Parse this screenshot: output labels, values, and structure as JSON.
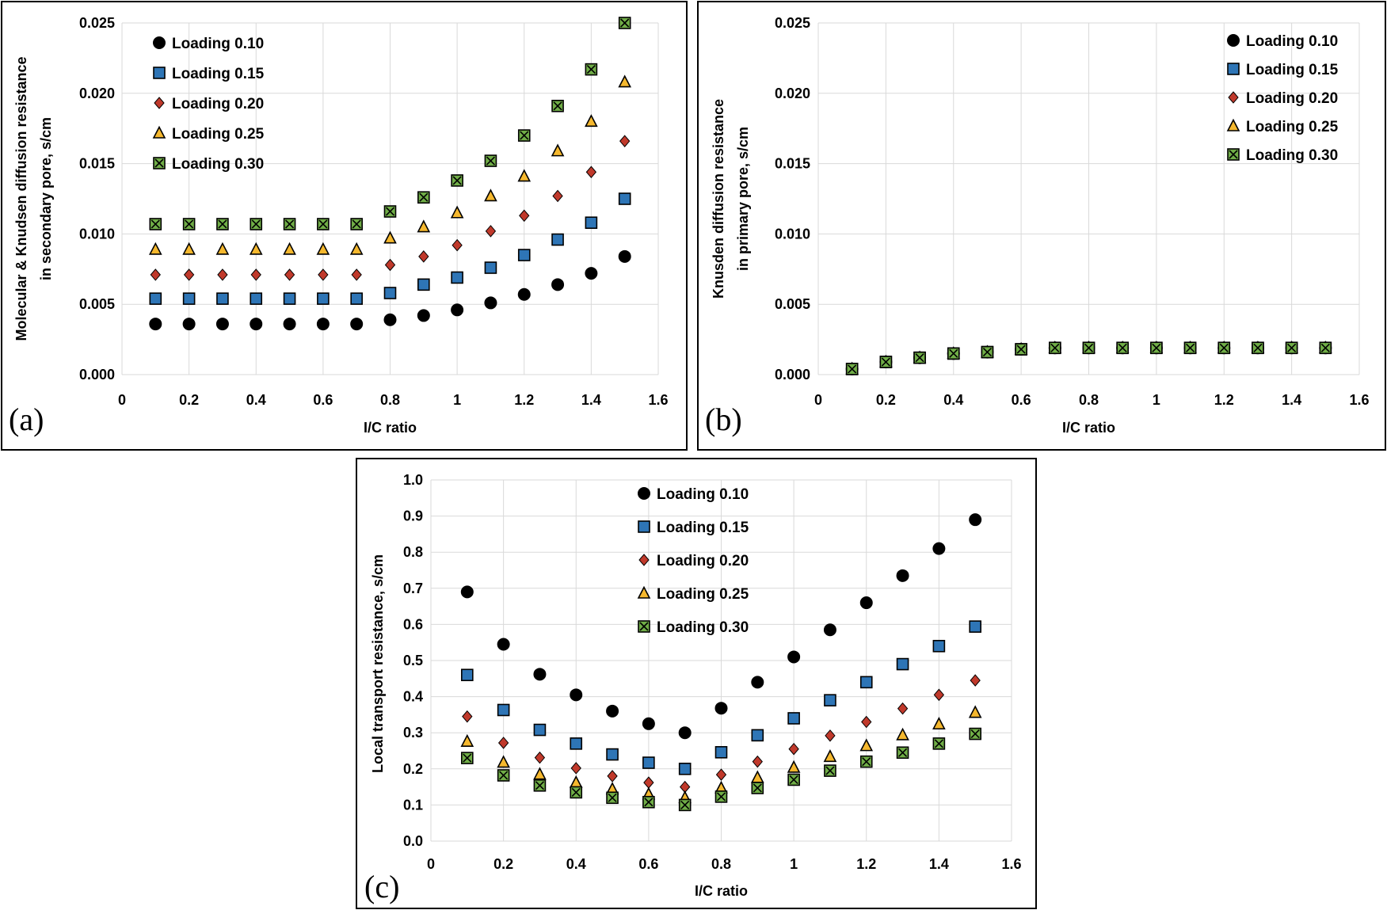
{
  "colors": {
    "loading_010": "#000000",
    "loading_015": "#2e75b6",
    "loading_020": "#c0392b",
    "loading_025": "#f5b82e",
    "loading_030": "#70ad47",
    "grid": "#d9d9d9"
  },
  "chart_data": [
    {
      "id": "a",
      "type": "scatter",
      "panel_label": "(a)",
      "xlabel": "I/C ratio",
      "ylabel_lines": [
        "Molecular & Knudsen diffusion resistance",
        "in secondary pore, s/cm"
      ],
      "xlim": [
        0,
        1.6
      ],
      "ylim": [
        0,
        0.025
      ],
      "xticks": [
        "0",
        "0.2",
        "0.4",
        "0.6",
        "0.8",
        "1",
        "1.2",
        "1.4",
        "1.6"
      ],
      "yticks": [
        "0.000",
        "0.005",
        "0.010",
        "0.015",
        "0.020",
        "0.025"
      ],
      "grid": true,
      "legend_position": "top-left",
      "x": [
        0.1,
        0.2,
        0.3,
        0.4,
        0.5,
        0.6,
        0.7,
        0.8,
        0.9,
        1.0,
        1.1,
        1.2,
        1.3,
        1.4,
        1.5
      ],
      "series": [
        {
          "name": "Loading 0.10",
          "marker": "circle",
          "values": [
            0.0036,
            0.0036,
            0.0036,
            0.0036,
            0.0036,
            0.0036,
            0.0036,
            0.0039,
            0.0042,
            0.0046,
            0.0051,
            0.0057,
            0.0064,
            0.0072,
            0.0084
          ]
        },
        {
          "name": "Loading 0.15",
          "marker": "square",
          "values": [
            0.0054,
            0.0054,
            0.0054,
            0.0054,
            0.0054,
            0.0054,
            0.0054,
            0.0058,
            0.0064,
            0.0069,
            0.0076,
            0.0085,
            0.0096,
            0.0108,
            0.0125
          ]
        },
        {
          "name": "Loading 0.20",
          "marker": "diamond",
          "values": [
            0.0071,
            0.0071,
            0.0071,
            0.0071,
            0.0071,
            0.0071,
            0.0071,
            0.0078,
            0.0084,
            0.0092,
            0.0102,
            0.0113,
            0.0127,
            0.0144,
            0.0166
          ]
        },
        {
          "name": "Loading 0.25",
          "marker": "triangle",
          "values": [
            0.0089,
            0.0089,
            0.0089,
            0.0089,
            0.0089,
            0.0089,
            0.0089,
            0.0097,
            0.0105,
            0.0115,
            0.0127,
            0.0141,
            0.0159,
            0.018,
            0.0208
          ]
        },
        {
          "name": "Loading 0.30",
          "marker": "xsquare",
          "values": [
            0.0107,
            0.0107,
            0.0107,
            0.0107,
            0.0107,
            0.0107,
            0.0107,
            0.0116,
            0.0126,
            0.0138,
            0.0152,
            0.017,
            0.0191,
            0.0217,
            0.025
          ]
        }
      ]
    },
    {
      "id": "b",
      "type": "scatter",
      "panel_label": "(b)",
      "xlabel": "I/C ratio",
      "ylabel_lines": [
        "Knusden diffusion resistance",
        "in primary pore, s/cm"
      ],
      "xlim": [
        0,
        1.6
      ],
      "ylim": [
        0,
        0.025
      ],
      "xticks": [
        "0",
        "0.2",
        "0.4",
        "0.6",
        "0.8",
        "1",
        "1.2",
        "1.4",
        "1.6"
      ],
      "yticks": [
        "0.000",
        "0.005",
        "0.010",
        "0.015",
        "0.020",
        "0.025"
      ],
      "grid": true,
      "legend_position": "top-right",
      "x": [
        0.1,
        0.2,
        0.3,
        0.4,
        0.5,
        0.6,
        0.7,
        0.8,
        0.9,
        1.0,
        1.1,
        1.2,
        1.3,
        1.4,
        1.5
      ],
      "series": [
        {
          "name": "Loading 0.10",
          "marker": "circle",
          "values": [
            0.0004,
            0.0009,
            0.0012,
            0.0015,
            0.0016,
            0.0018,
            0.0019,
            0.0019,
            0.0019,
            0.0019,
            0.0019,
            0.0019,
            0.0019,
            0.0019,
            0.0019
          ]
        },
        {
          "name": "Loading 0.15",
          "marker": "square",
          "values": [
            0.0004,
            0.0009,
            0.0012,
            0.0015,
            0.0016,
            0.0018,
            0.0019,
            0.0019,
            0.0019,
            0.0019,
            0.0019,
            0.0019,
            0.0019,
            0.0019,
            0.0019
          ]
        },
        {
          "name": "Loading 0.20",
          "marker": "diamond",
          "values": [
            0.0004,
            0.0009,
            0.0012,
            0.0015,
            0.0016,
            0.0018,
            0.0019,
            0.0019,
            0.0019,
            0.0019,
            0.0019,
            0.0019,
            0.0019,
            0.0019,
            0.0019
          ]
        },
        {
          "name": "Loading 0.25",
          "marker": "triangle",
          "values": [
            0.0004,
            0.0009,
            0.0012,
            0.0015,
            0.0016,
            0.0018,
            0.0019,
            0.0019,
            0.0019,
            0.0019,
            0.0019,
            0.0019,
            0.0019,
            0.0019,
            0.0019
          ]
        },
        {
          "name": "Loading 0.30",
          "marker": "xsquare",
          "values": [
            0.0004,
            0.0009,
            0.0012,
            0.0015,
            0.0016,
            0.0018,
            0.0019,
            0.0019,
            0.0019,
            0.0019,
            0.0019,
            0.0019,
            0.0019,
            0.0019,
            0.0019
          ]
        }
      ]
    },
    {
      "id": "c",
      "type": "scatter",
      "panel_label": "(c)",
      "xlabel": "I/C ratio",
      "ylabel_lines": [
        "Local transport resistance, s/cm"
      ],
      "xlim": [
        0,
        1.6
      ],
      "ylim": [
        0,
        1.0
      ],
      "xticks": [
        "0",
        "0.2",
        "0.4",
        "0.6",
        "0.8",
        "1",
        "1.2",
        "1.4",
        "1.6"
      ],
      "yticks": [
        "0.0",
        "0.1",
        "0.2",
        "0.3",
        "0.4",
        "0.5",
        "0.6",
        "0.7",
        "0.8",
        "0.9",
        "1.0"
      ],
      "grid": true,
      "legend_position": "top-center",
      "x": [
        0.1,
        0.2,
        0.3,
        0.4,
        0.5,
        0.6,
        0.7,
        0.8,
        0.9,
        1.0,
        1.1,
        1.2,
        1.3,
        1.4,
        1.5
      ],
      "series": [
        {
          "name": "Loading 0.10",
          "marker": "circle",
          "values": [
            0.69,
            0.545,
            0.462,
            0.405,
            0.36,
            0.325,
            0.3,
            0.368,
            0.44,
            0.51,
            0.585,
            0.66,
            0.735,
            0.81,
            0.89
          ]
        },
        {
          "name": "Loading 0.15",
          "marker": "square",
          "values": [
            0.46,
            0.363,
            0.308,
            0.27,
            0.24,
            0.217,
            0.2,
            0.246,
            0.293,
            0.34,
            0.39,
            0.44,
            0.49,
            0.54,
            0.594
          ]
        },
        {
          "name": "Loading 0.20",
          "marker": "diamond",
          "values": [
            0.345,
            0.272,
            0.231,
            0.202,
            0.18,
            0.162,
            0.15,
            0.184,
            0.22,
            0.255,
            0.292,
            0.33,
            0.367,
            0.405,
            0.445
          ]
        },
        {
          "name": "Loading 0.25",
          "marker": "triangle",
          "values": [
            0.276,
            0.218,
            0.185,
            0.162,
            0.144,
            0.13,
            0.12,
            0.147,
            0.176,
            0.204,
            0.234,
            0.264,
            0.294,
            0.324,
            0.356
          ]
        },
        {
          "name": "Loading 0.30",
          "marker": "xsquare",
          "values": [
            0.23,
            0.182,
            0.154,
            0.135,
            0.12,
            0.108,
            0.1,
            0.123,
            0.147,
            0.17,
            0.195,
            0.22,
            0.245,
            0.27,
            0.297
          ]
        }
      ]
    }
  ]
}
